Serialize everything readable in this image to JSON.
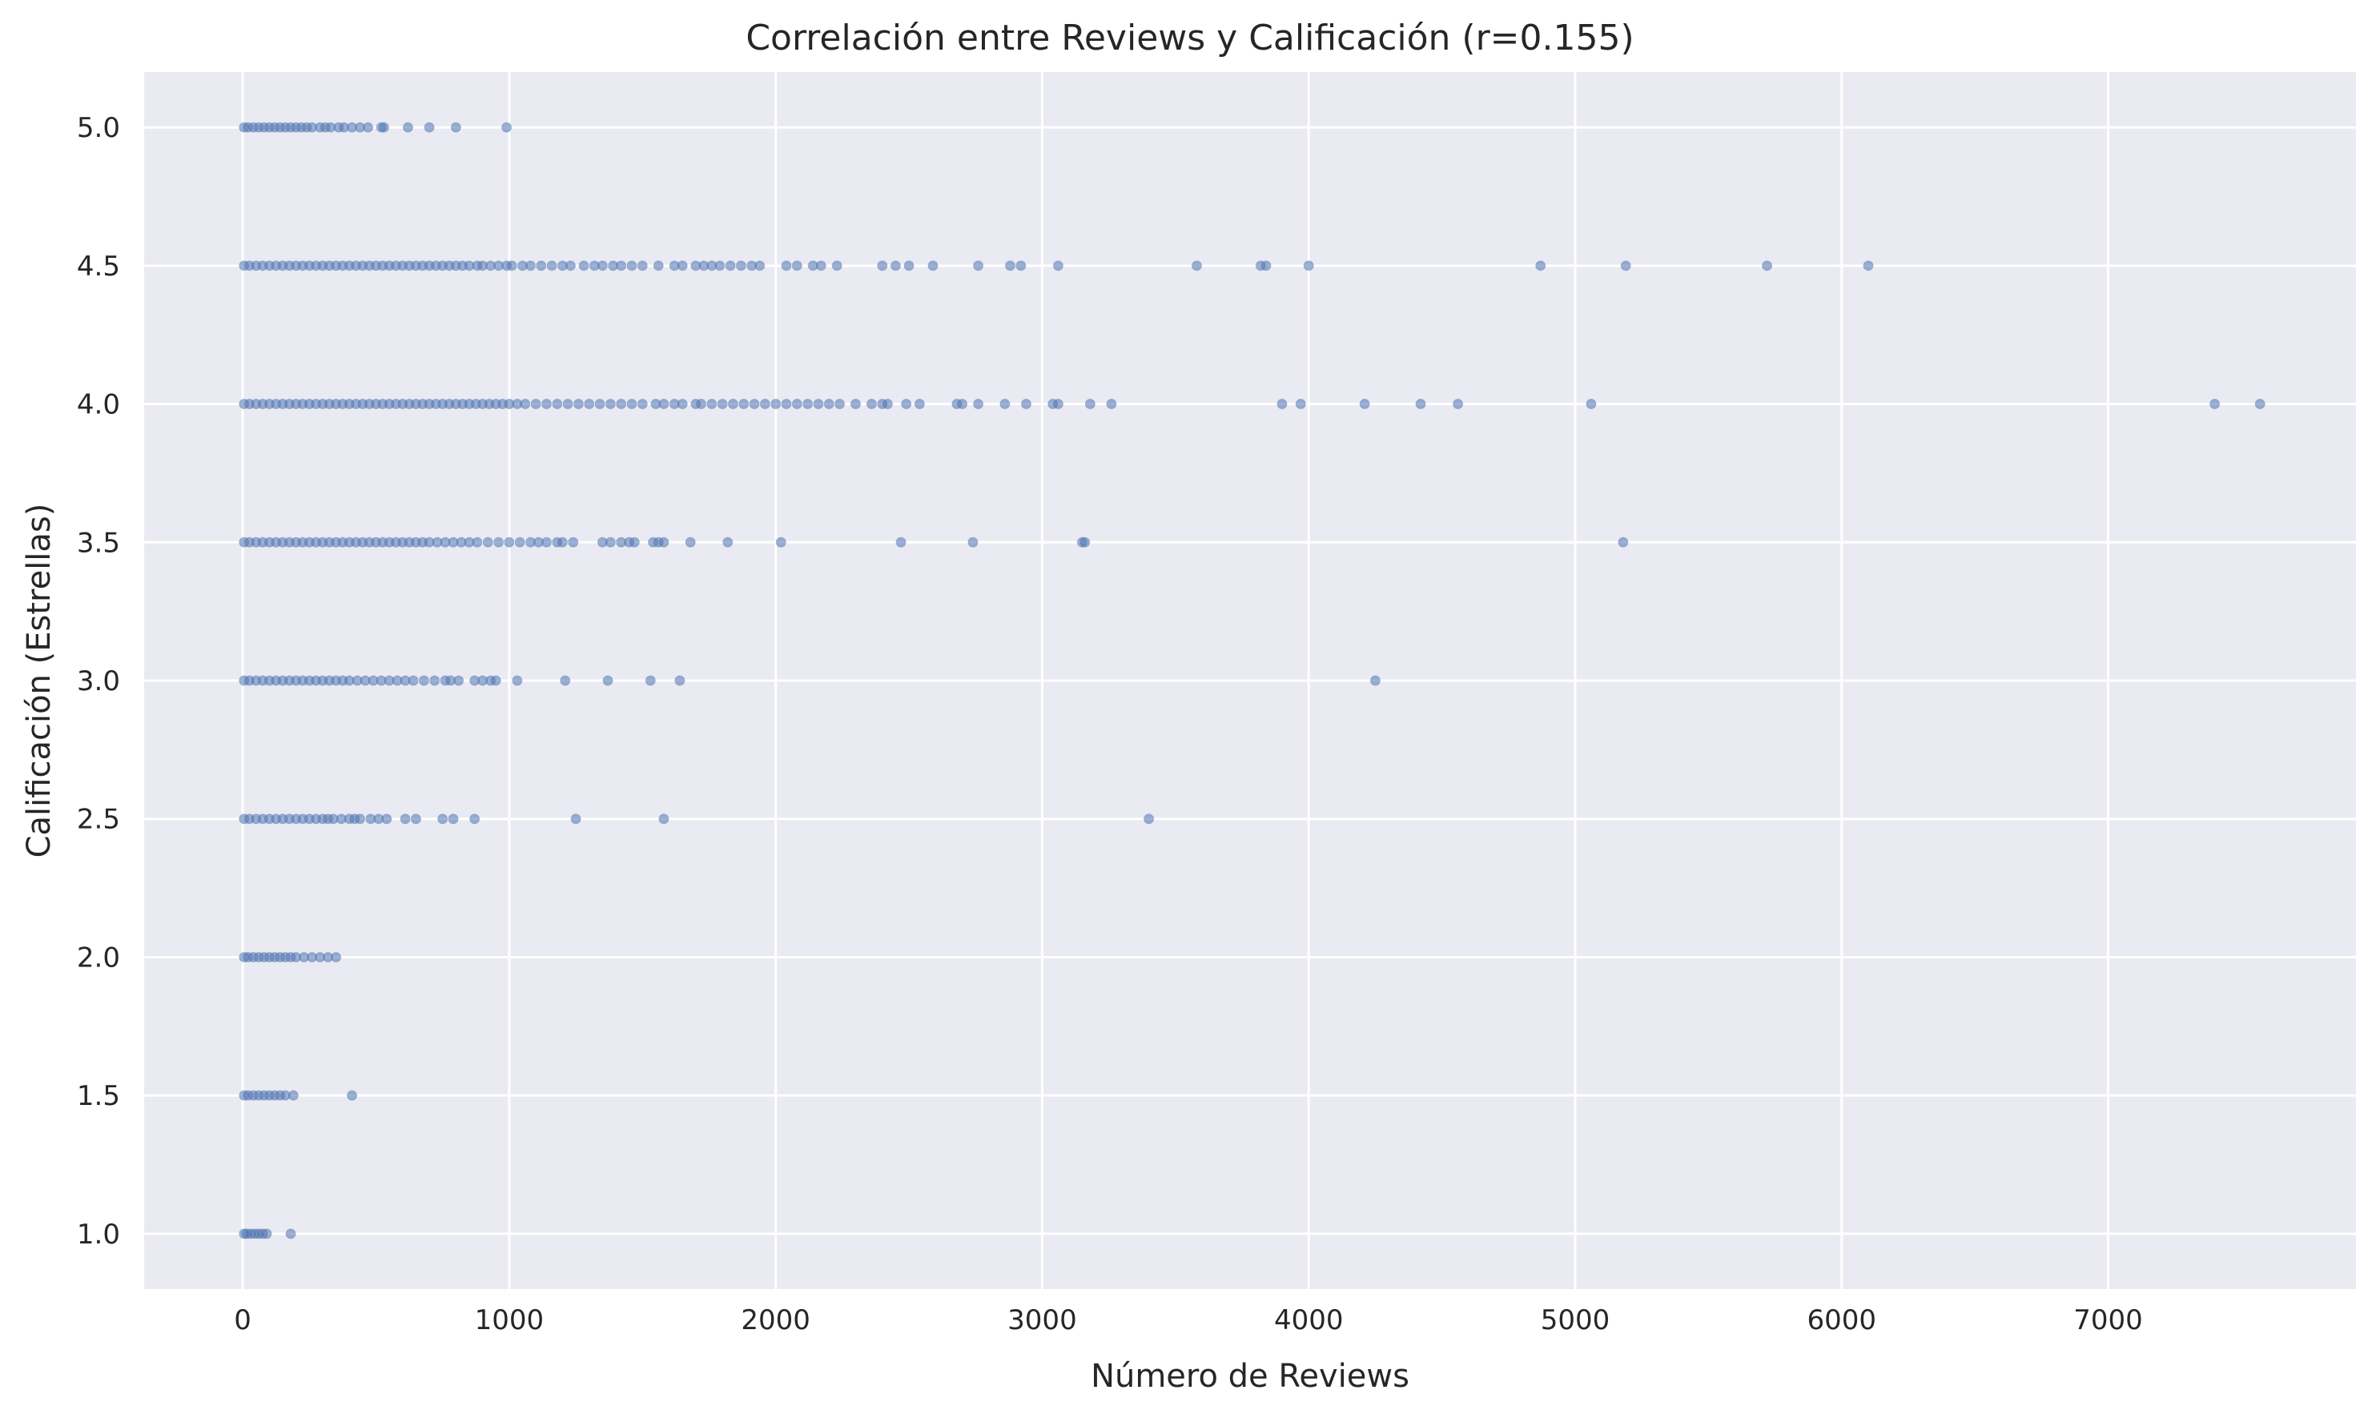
{
  "chart_data": {
    "type": "scatter",
    "title": "Correlación entre Reviews y Calificación (r=0.155)",
    "xlabel": "Número de Reviews",
    "ylabel": "Calificación (Estrellas)",
    "xlim": [
      -370,
      7930
    ],
    "ylim": [
      0.8,
      5.2
    ],
    "xticks": [
      0,
      1000,
      2000,
      3000,
      4000,
      5000,
      6000,
      7000
    ],
    "yticks": [
      1.0,
      1.5,
      2.0,
      2.5,
      3.0,
      3.5,
      4.0,
      4.5,
      5.0
    ],
    "xtick_labels": [
      "0",
      "1000",
      "2000",
      "3000",
      "4000",
      "5000",
      "6000",
      "7000"
    ],
    "ytick_labels": [
      "1.0",
      "1.5",
      "2.0",
      "2.5",
      "3.0",
      "3.5",
      "4.0",
      "4.5",
      "5.0"
    ],
    "grid": true,
    "point_color": "#4c72b0",
    "background_color": "#eaeaf2",
    "series": [
      {
        "y": 5.0,
        "x": [
          5,
          20,
          40,
          60,
          80,
          100,
          120,
          140,
          160,
          180,
          200,
          220,
          240,
          260,
          290,
          310,
          330,
          360,
          380,
          410,
          440,
          470,
          520,
          530,
          620,
          700,
          800,
          990
        ]
      },
      {
        "y": 4.5,
        "x": [
          5,
          25,
          50,
          75,
          100,
          125,
          150,
          175,
          200,
          225,
          250,
          275,
          300,
          325,
          350,
          375,
          400,
          425,
          450,
          475,
          500,
          525,
          550,
          575,
          600,
          625,
          650,
          675,
          700,
          725,
          750,
          775,
          800,
          825,
          850,
          880,
          900,
          930,
          960,
          990,
          1010,
          1050,
          1080,
          1120,
          1160,
          1200,
          1230,
          1280,
          1320,
          1350,
          1390,
          1420,
          1460,
          1500,
          1560,
          1620,
          1650,
          1700,
          1730,
          1760,
          1790,
          1830,
          1870,
          1910,
          1940,
          2040,
          2080,
          2140,
          2170,
          2230,
          2400,
          2450,
          2500,
          2590,
          2760,
          2880,
          2920,
          3060,
          3580,
          3820,
          3840,
          4000,
          4870,
          5190,
          5720,
          6100
        ]
      },
      {
        "y": 4.0,
        "x": [
          5,
          25,
          50,
          75,
          100,
          125,
          150,
          175,
          200,
          225,
          250,
          275,
          300,
          325,
          350,
          375,
          400,
          425,
          450,
          475,
          500,
          525,
          550,
          575,
          600,
          625,
          650,
          675,
          700,
          725,
          750,
          775,
          800,
          825,
          850,
          875,
          900,
          925,
          950,
          975,
          1000,
          1030,
          1060,
          1100,
          1140,
          1180,
          1220,
          1260,
          1300,
          1340,
          1380,
          1420,
          1460,
          1500,
          1550,
          1580,
          1620,
          1650,
          1700,
          1720,
          1760,
          1800,
          1840,
          1880,
          1920,
          1960,
          2000,
          2040,
          2080,
          2120,
          2160,
          2200,
          2240,
          2300,
          2360,
          2400,
          2420,
          2490,
          2540,
          2680,
          2700,
          2760,
          2860,
          2940,
          3040,
          3060,
          3180,
          3260,
          3900,
          3970,
          4210,
          4420,
          4560,
          5060,
          7400,
          7570
        ]
      },
      {
        "y": 3.5,
        "x": [
          5,
          25,
          50,
          75,
          100,
          125,
          150,
          175,
          200,
          225,
          250,
          275,
          300,
          325,
          350,
          375,
          400,
          425,
          450,
          475,
          500,
          525,
          550,
          575,
          600,
          625,
          650,
          675,
          700,
          730,
          760,
          790,
          820,
          850,
          880,
          920,
          960,
          1000,
          1040,
          1080,
          1110,
          1140,
          1180,
          1200,
          1240,
          1350,
          1380,
          1420,
          1450,
          1470,
          1540,
          1560,
          1580,
          1680,
          1820,
          2020,
          2470,
          2740,
          3150,
          3160,
          5180
        ]
      },
      {
        "y": 3.0,
        "x": [
          5,
          25,
          50,
          75,
          100,
          125,
          150,
          175,
          200,
          225,
          250,
          275,
          300,
          325,
          350,
          375,
          400,
          430,
          460,
          490,
          520,
          550,
          580,
          610,
          640,
          680,
          720,
          760,
          780,
          810,
          870,
          900,
          930,
          950,
          1030,
          1210,
          1370,
          1530,
          1640,
          4250
        ]
      },
      {
        "y": 2.5,
        "x": [
          5,
          25,
          50,
          75,
          100,
          125,
          150,
          175,
          200,
          225,
          250,
          275,
          300,
          320,
          340,
          370,
          400,
          420,
          440,
          480,
          510,
          540,
          610,
          650,
          750,
          790,
          870,
          1250,
          1580,
          3400
        ]
      },
      {
        "y": 2.0,
        "x": [
          5,
          20,
          40,
          60,
          80,
          100,
          120,
          140,
          160,
          180,
          200,
          230,
          260,
          290,
          320,
          350
        ]
      },
      {
        "y": 1.5,
        "x": [
          5,
          20,
          40,
          60,
          80,
          100,
          120,
          140,
          160,
          190,
          410
        ]
      },
      {
        "y": 1.0,
        "x": [
          5,
          15,
          30,
          45,
          60,
          75,
          90,
          180
        ]
      }
    ]
  }
}
